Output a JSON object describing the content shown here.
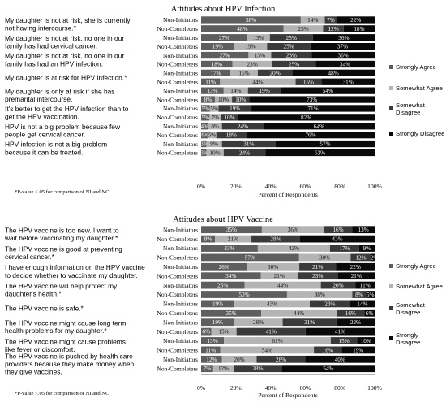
{
  "legend": [
    "Strongly Agree",
    "Somewhat Agree",
    "Somewhat Disagree",
    "Strongly Disagree"
  ],
  "colors": [
    "#5e5e5e",
    "#b4b4b4",
    "#3a3a3a",
    "#0a0a0a"
  ],
  "chart_data": [
    {
      "type": "bar",
      "stacked": true,
      "orientation": "horizontal",
      "title": "Attitudes about HPV Infection",
      "xlabel": "Percent of Respondents",
      "xlim": [
        0,
        100
      ],
      "ticks": [
        "0%",
        "20%",
        "40%",
        "60%",
        "80%",
        "100%"
      ],
      "footnote": "*P-value <.05 for comparison of NI and NC",
      "items": [
        {
          "statement": [
            "My daughter is not at risk, she is currently",
            "not having intercourse.*"
          ],
          "rows": [
            {
              "group": "Non-Initiators",
              "values": [
                58,
                14,
                7,
                22
              ]
            },
            {
              "group": "Non-Completers",
              "values": [
                48,
                23,
                12,
                18
              ]
            }
          ]
        },
        {
          "statement": [
            "My daughter is not at risk, no one in our",
            "family has had cervical cancer."
          ],
          "rows": [
            {
              "group": "Non-Initiators",
              "values": [
                27,
                13,
                25,
                36
              ]
            },
            {
              "group": "Non-Completers",
              "values": [
                19,
                19,
                25,
                37
              ]
            }
          ]
        },
        {
          "statement": [
            "My daughter is not at risk, no one in our",
            "family has had an HPV infection."
          ],
          "rows": [
            {
              "group": "Non-Initiators",
              "values": [
                27,
                13,
                23,
                36
              ]
            },
            {
              "group": "Non-Completers",
              "values": [
                18,
                23,
                25,
                34
              ]
            }
          ]
        },
        {
          "statement": [
            "My daughter is at risk for HPV infection.*"
          ],
          "rows": [
            {
              "group": "Non-Initiators",
              "values": [
                17,
                16,
                20,
                48
              ]
            },
            {
              "group": "Non-Completers",
              "values": [
                11,
                44,
                15,
                31
              ]
            }
          ]
        },
        {
          "statement": [
            "My daughter is only at risk if she has",
            "premarital intercourse."
          ],
          "rows": [
            {
              "group": "Non-Initiators",
              "values": [
                13,
                14,
                19,
                54
              ]
            },
            {
              "group": "Non-Completers",
              "values": [
                8,
                10,
                10,
                73
              ]
            }
          ]
        },
        {
          "statement": [
            "It's better to get the HPV infection than to",
            "get the HPV vaccination."
          ],
          "rows": [
            {
              "group": "Non-Initiators",
              "values": [
                5,
                5,
                19,
                71
              ]
            },
            {
              "group": "Non-Completers",
              "values": [
                5,
                7,
                10,
                82
              ]
            }
          ]
        },
        {
          "statement": [
            "HPV is not a big problem because few",
            "people get cervical cancer."
          ],
          "rows": [
            {
              "group": "Non-Initiators",
              "values": [
                4,
                8,
                24,
                64
              ]
            },
            {
              "group": "Non-Completers",
              "values": [
                4,
                5,
                18,
                76
              ]
            }
          ]
        },
        {
          "statement": [
            "HPV infection is not a big problem",
            "because it can be treated."
          ],
          "rows": [
            {
              "group": "Non-Initiators",
              "values": [
                3,
                9,
                31,
                57
              ]
            },
            {
              "group": "Non-Completers",
              "values": [
                3,
                10,
                24,
                63
              ]
            }
          ]
        }
      ]
    },
    {
      "type": "bar",
      "stacked": true,
      "orientation": "horizontal",
      "title": "Attitudes about HPV Vaccine",
      "xlabel": "Percent of Respondents",
      "xlim": [
        0,
        100
      ],
      "ticks": [
        "0%",
        "20%",
        "40%",
        "60%",
        "80%",
        "100%"
      ],
      "footnote": "*P-value <.05 for comparison of NI and NC",
      "items": [
        {
          "statement": [
            "The HPV vaccine is too new. I want to",
            "wait before vaccinating my daughter.*"
          ],
          "rows": [
            {
              "group": "Non-Initiators",
              "values": [
                35,
                36,
                16,
                13
              ]
            },
            {
              "group": "Non-Completers",
              "values": [
                8,
                21,
                28,
                43
              ]
            }
          ]
        },
        {
          "statement": [
            "The HPV vaccine is good at preventing",
            "cervical cancer.*"
          ],
          "rows": [
            {
              "group": "Non-Initiators",
              "values": [
                33,
                42,
                17,
                9
              ]
            },
            {
              "group": "Non-Completers",
              "values": [
                57,
                30,
                12,
                2
              ]
            }
          ]
        },
        {
          "statement": [
            "I have enough information on the HPV vaccine",
            "to decide whether to vaccinate my daughter."
          ],
          "rows": [
            {
              "group": "Non-Initiators",
              "values": [
                26,
                30,
                21,
                22
              ]
            },
            {
              "group": "Non-Completers",
              "values": [
                34,
                21,
                23,
                21
              ]
            }
          ]
        },
        {
          "statement": [
            "The HPV vaccine will help protect my",
            "daughter's health.*"
          ],
          "rows": [
            {
              "group": "Non-Initiators",
              "values": [
                25,
                44,
                20,
                11
              ]
            },
            {
              "group": "Non-Completers",
              "values": [
                50,
                38,
                8,
                5
              ]
            }
          ]
        },
        {
          "statement": [
            "The HPV vaccine is safe.*"
          ],
          "rows": [
            {
              "group": "Non-Initiators",
              "values": [
                19,
                43,
                23,
                14
              ]
            },
            {
              "group": "Non-Completers",
              "values": [
                35,
                44,
                16,
                6
              ]
            }
          ]
        },
        {
          "statement": [
            "The HPV vaccine might cause long term",
            "health problems for my daughter.*"
          ],
          "rows": [
            {
              "group": "Non-Initiators",
              "values": [
                19,
                28,
                31,
                22
              ]
            },
            {
              "group": "Non-Completers",
              "values": [
                6,
                15,
                41,
                41
              ]
            }
          ]
        },
        {
          "statement": [
            "The HPV vaccine might cause problems",
            "like fever or discomfort."
          ],
          "rows": [
            {
              "group": "Non-Initiators",
              "values": [
                13,
                61,
                15,
                10
              ]
            },
            {
              "group": "Non-Completers",
              "values": [
                11,
                54,
                16,
                19
              ]
            }
          ]
        },
        {
          "statement": [
            "The HPV vaccine is pushed by health care",
            "providers because they make money when",
            "they give vaccines."
          ],
          "rows": [
            {
              "group": "Non-Initiators",
              "values": [
                12,
                20,
                28,
                40
              ]
            },
            {
              "group": "Non-Completers",
              "values": [
                7,
                12,
                28,
                54
              ]
            }
          ]
        }
      ]
    }
  ]
}
